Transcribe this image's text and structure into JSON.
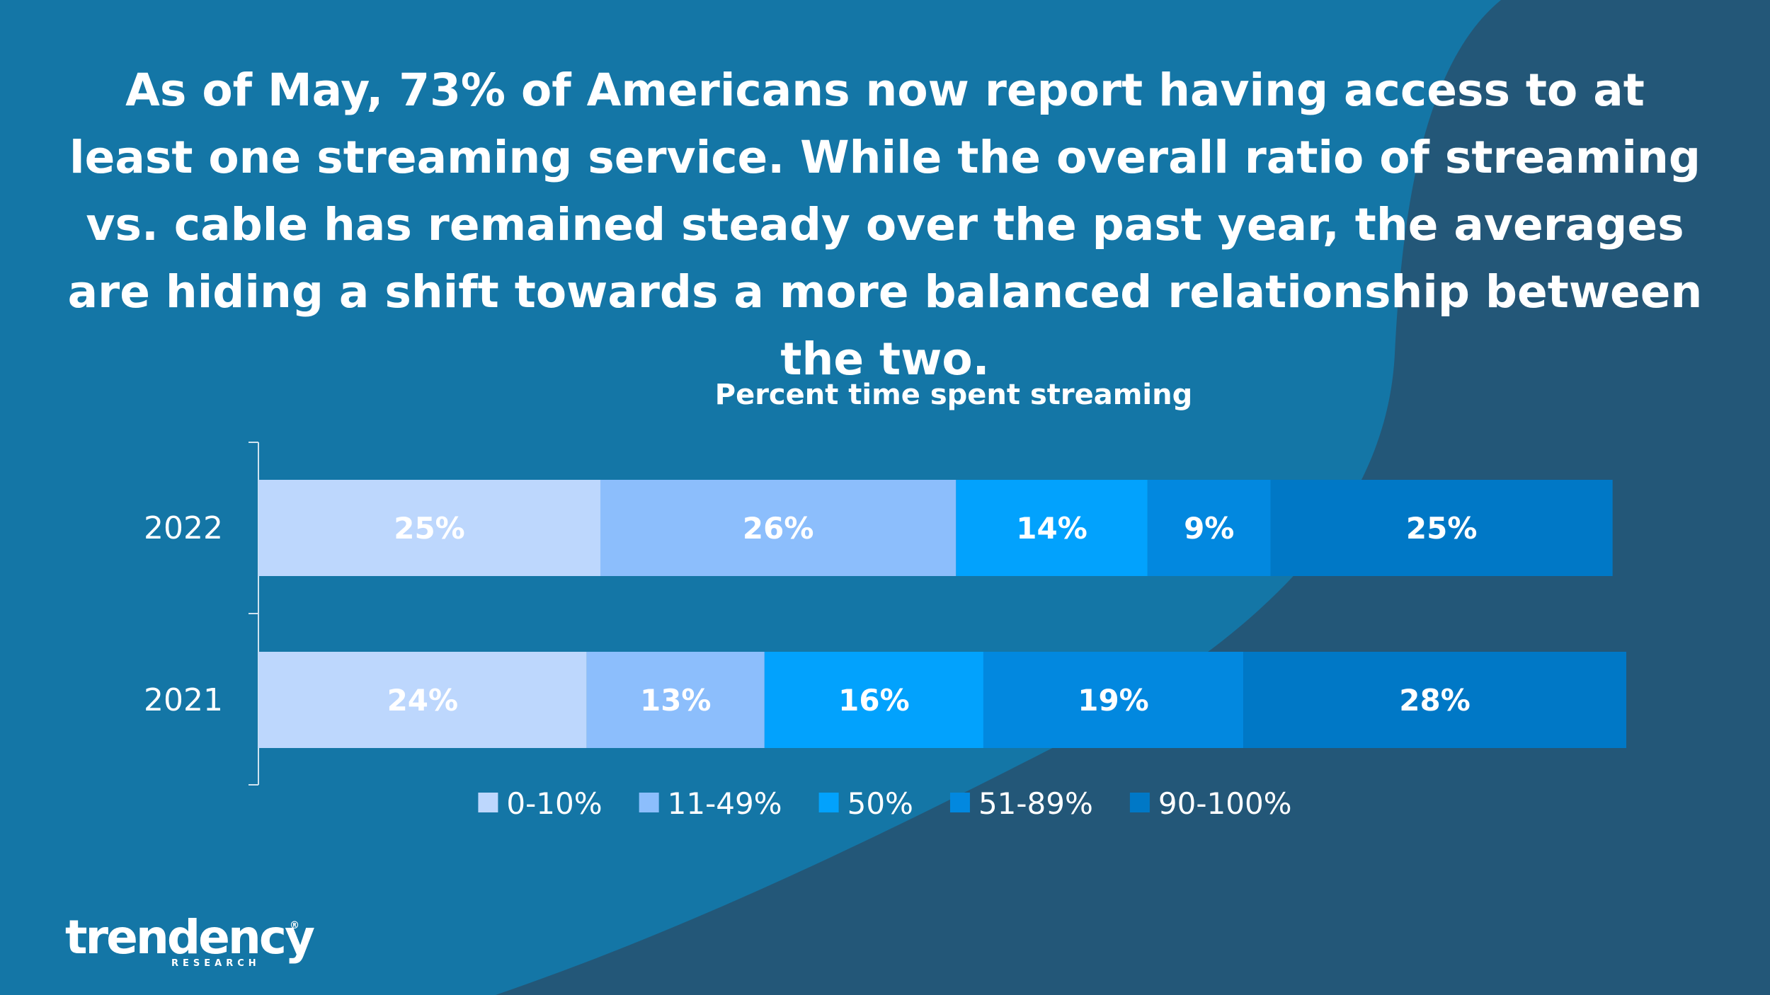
{
  "headline": "As of May, 73% of Americans now report having access to at least one streaming service. While the overall ratio of streaming vs. cable has remained steady over the past year, the averages are hiding a shift towards a more balanced relationship between the two.",
  "logo": {
    "word": "trendency",
    "sub": "RESEARCH",
    "reg": "®"
  },
  "colors": {
    "background": "#1476a6",
    "background_shape": "#235778",
    "text": "#ffffff"
  },
  "chart_data": {
    "type": "bar",
    "orientation": "horizontal",
    "stacked": true,
    "title": "Percent time spent streaming",
    "categories": [
      "2022",
      "2021"
    ],
    "series": [
      {
        "name": "0-10%",
        "color": "#bdd7fd",
        "values": [
          25,
          24
        ]
      },
      {
        "name": "11-49%",
        "color": "#8cbefc",
        "values": [
          26,
          13
        ]
      },
      {
        "name": "50%",
        "color": "#02a2fd",
        "values": [
          14,
          16
        ]
      },
      {
        "name": "51-89%",
        "color": "#0288df",
        "values": [
          9,
          19
        ]
      },
      {
        "name": "90-100%",
        "color": "#0078c6",
        "values": [
          25,
          28
        ]
      }
    ],
    "data_label_suffix": "%",
    "legend": "bottom",
    "grid": false,
    "xlim": [
      0,
      100
    ]
  }
}
